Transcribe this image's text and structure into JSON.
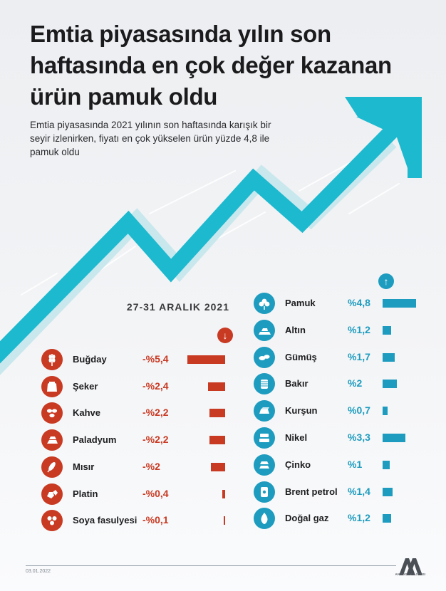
{
  "header": {
    "title": "Emtia piyasasında yılın son haftasında en çok değer kazanan ürün pamuk oldu",
    "subtitle": "Emtia piyasasında 2021 yılının son haftasında karışık bir seyir izlenirken, fiyatı en çok yükselen ürün yüzde 4,8 ile pamuk oldu"
  },
  "period": "27-31 ARALIK 2021",
  "colors": {
    "decline": "#c93a23",
    "rise": "#1d9cbf",
    "arrow": "#1cb9cf",
    "arrow_shadow": "#c9e8ee"
  },
  "chart_data": [
    {
      "type": "bar",
      "orientation": "horizontal",
      "direction": "down",
      "unit": "%",
      "categories": [
        "Buğday",
        "Şeker",
        "Kahve",
        "Paladyum",
        "Mısır",
        "Platin",
        "Soya fasulyesi"
      ],
      "values": [
        -5.4,
        -2.4,
        -2.2,
        -2.2,
        -2.0,
        -0.4,
        -0.1
      ],
      "labels": [
        "-%5,4",
        "-%2,4",
        "-%2,2",
        "-%2,2",
        "-%2",
        "-%0,4",
        "-%0,1"
      ],
      "icons": [
        "wheat-icon",
        "sugar-sack-icon",
        "coffee-beans-icon",
        "palladium-bars-icon",
        "corn-icon",
        "platinum-nuggets-icon",
        "soybeans-icon"
      ]
    },
    {
      "type": "bar",
      "orientation": "horizontal",
      "direction": "up",
      "unit": "%",
      "categories": [
        "Pamuk",
        "Altın",
        "Gümüş",
        "Bakır",
        "Kurşun",
        "Nikel",
        "Çinko",
        "Brent petrol",
        "Doğal gaz"
      ],
      "values": [
        4.8,
        1.2,
        1.7,
        2.0,
        0.7,
        3.3,
        1.0,
        1.4,
        1.2
      ],
      "labels": [
        "%4,8",
        "%1,2",
        "%1,7",
        "%2",
        "%0,7",
        "%3,3",
        "%1",
        "%1,4",
        "%1,2"
      ],
      "icons": [
        "cotton-icon",
        "gold-bars-icon",
        "silver-nuggets-icon",
        "copper-coil-icon",
        "lead-ingot-icon",
        "nickel-bars-icon",
        "zinc-bars-icon",
        "oil-barrel-icon",
        "gas-flame-icon"
      ]
    }
  ],
  "footer": {
    "date": "03.01.2022",
    "agency": "ANADOLU AJANSI"
  }
}
